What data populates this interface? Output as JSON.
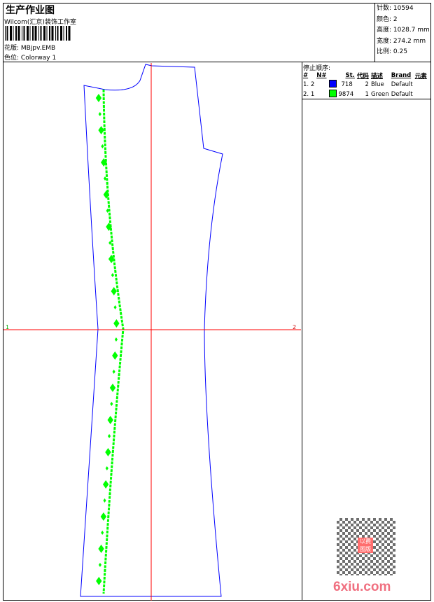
{
  "header": {
    "title": "生产作业图",
    "software": "Wilcom(汇京)装饰工作室",
    "design_label": "花版:",
    "design_value": "MBjpv.EMB",
    "colorway_label": "色位:",
    "colorway_value": "Colorway 1"
  },
  "info": [
    {
      "label": "针数:",
      "value": "10594"
    },
    {
      "label": "颜色:",
      "value": "2"
    },
    {
      "label": "高度:",
      "value": "1028.7 mm"
    },
    {
      "label": "宽度:",
      "value": "274.2 mm"
    },
    {
      "label": "比例:",
      "value": "0.25"
    }
  ],
  "stop_sequence": {
    "title": "停止顺序:",
    "columns": [
      "#",
      "N#",
      "",
      "St.",
      "代码",
      "描述",
      "Brand",
      "元素"
    ],
    "rows": [
      {
        "idx": "1.",
        "n": "2",
        "color": "#0000ff",
        "st": "718",
        "code": "2",
        "desc": "Blue",
        "brand": "Default"
      },
      {
        "idx": "2.",
        "n": "1",
        "color": "#00ff00",
        "st": "9874",
        "code": "1",
        "desc": "Green",
        "brand": "Default"
      }
    ]
  },
  "axis": {
    "left_label": "1",
    "right_label": "2"
  },
  "colors": {
    "outline": "#0000ff",
    "stitch": "#00ff00",
    "crosshair": "#ff0000"
  },
  "watermark": {
    "text": "6xiu.com",
    "seal": "以图版费"
  }
}
